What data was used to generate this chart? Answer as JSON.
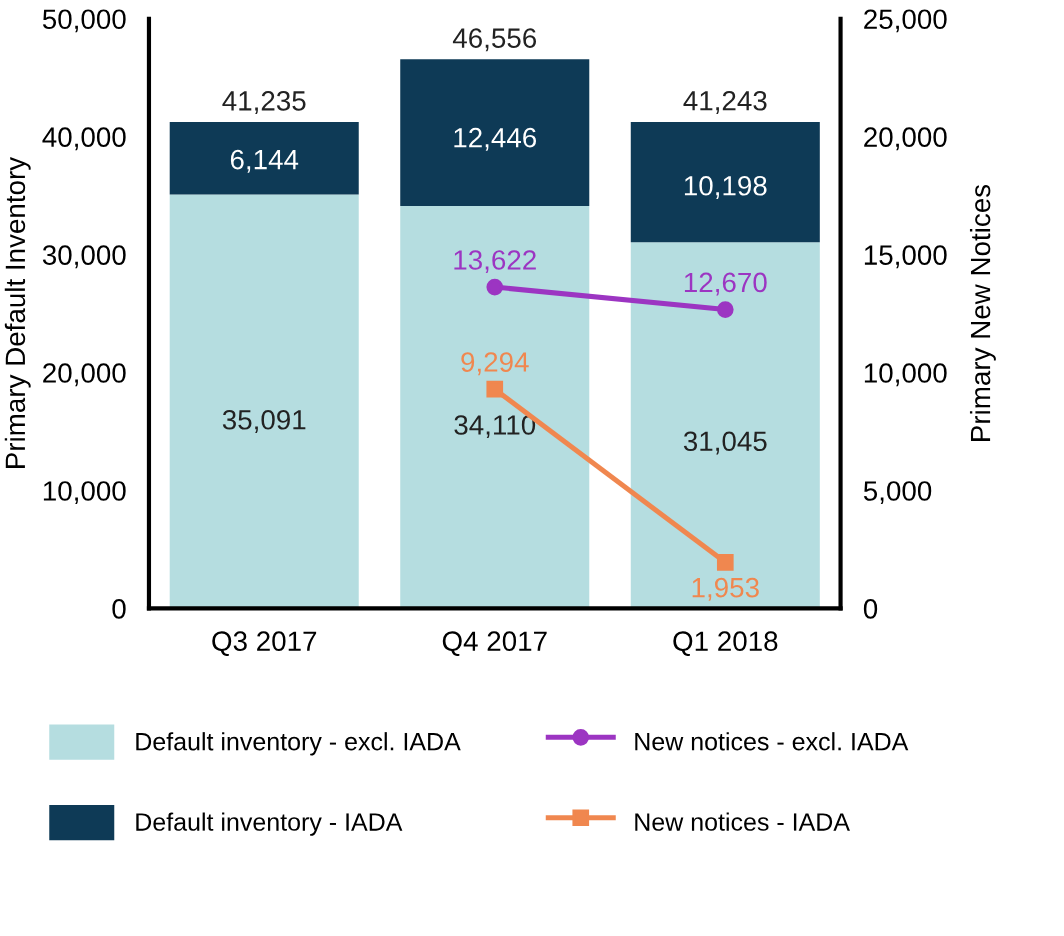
{
  "chart_data": {
    "type": "bar",
    "stacked": true,
    "categories": [
      "Q3 2017",
      "Q4 2017",
      "Q1 2018"
    ],
    "ylabel": "Primary Default Inventory",
    "y2label": "Primary New Notices",
    "ylim": [
      0,
      50000
    ],
    "yticks": [
      {
        "value": 0,
        "label": "0"
      },
      {
        "value": 10000,
        "label": "10,000"
      },
      {
        "value": 20000,
        "label": "20,000"
      },
      {
        "value": 30000,
        "label": "30,000"
      },
      {
        "value": 40000,
        "label": "40,000"
      },
      {
        "value": 50000,
        "label": "50,000"
      }
    ],
    "y2lim": [
      0,
      25000
    ],
    "y2ticks": [
      {
        "value": 0,
        "label": "0"
      },
      {
        "value": 5000,
        "label": "5,000"
      },
      {
        "value": 10000,
        "label": "10,000"
      },
      {
        "value": 15000,
        "label": "15,000"
      },
      {
        "value": 20000,
        "label": "20,000"
      },
      {
        "value": 25000,
        "label": "25,000"
      }
    ],
    "series": [
      {
        "name": "Default inventory - excl. IADA",
        "color": "#b5dde0",
        "values": [
          35091,
          34110,
          31045
        ],
        "value_labels": [
          "35,091",
          "34,110",
          "31,045"
        ]
      },
      {
        "name": "Default inventory - IADA",
        "color": "#0e3a56",
        "values": [
          6144,
          12446,
          10198
        ],
        "value_labels": [
          "6,144",
          "12,446",
          "10,198"
        ]
      },
      {
        "name": "New notices - excl. IADA",
        "type": "line",
        "axis": "y2",
        "marker": "circle",
        "color": "#9c35c2",
        "values": [
          null,
          13622,
          12670
        ],
        "value_labels": [
          null,
          "13,622",
          "12,670"
        ]
      },
      {
        "name": "New notices - IADA",
        "type": "line",
        "axis": "y2",
        "marker": "square",
        "color": "#f0874f",
        "values": [
          null,
          9294,
          1953
        ],
        "value_labels": [
          null,
          "9,294",
          "1,953"
        ]
      }
    ],
    "totals": [
      "41,235",
      "46,556",
      "41,243"
    ],
    "grid": false,
    "legend": "bottom"
  }
}
